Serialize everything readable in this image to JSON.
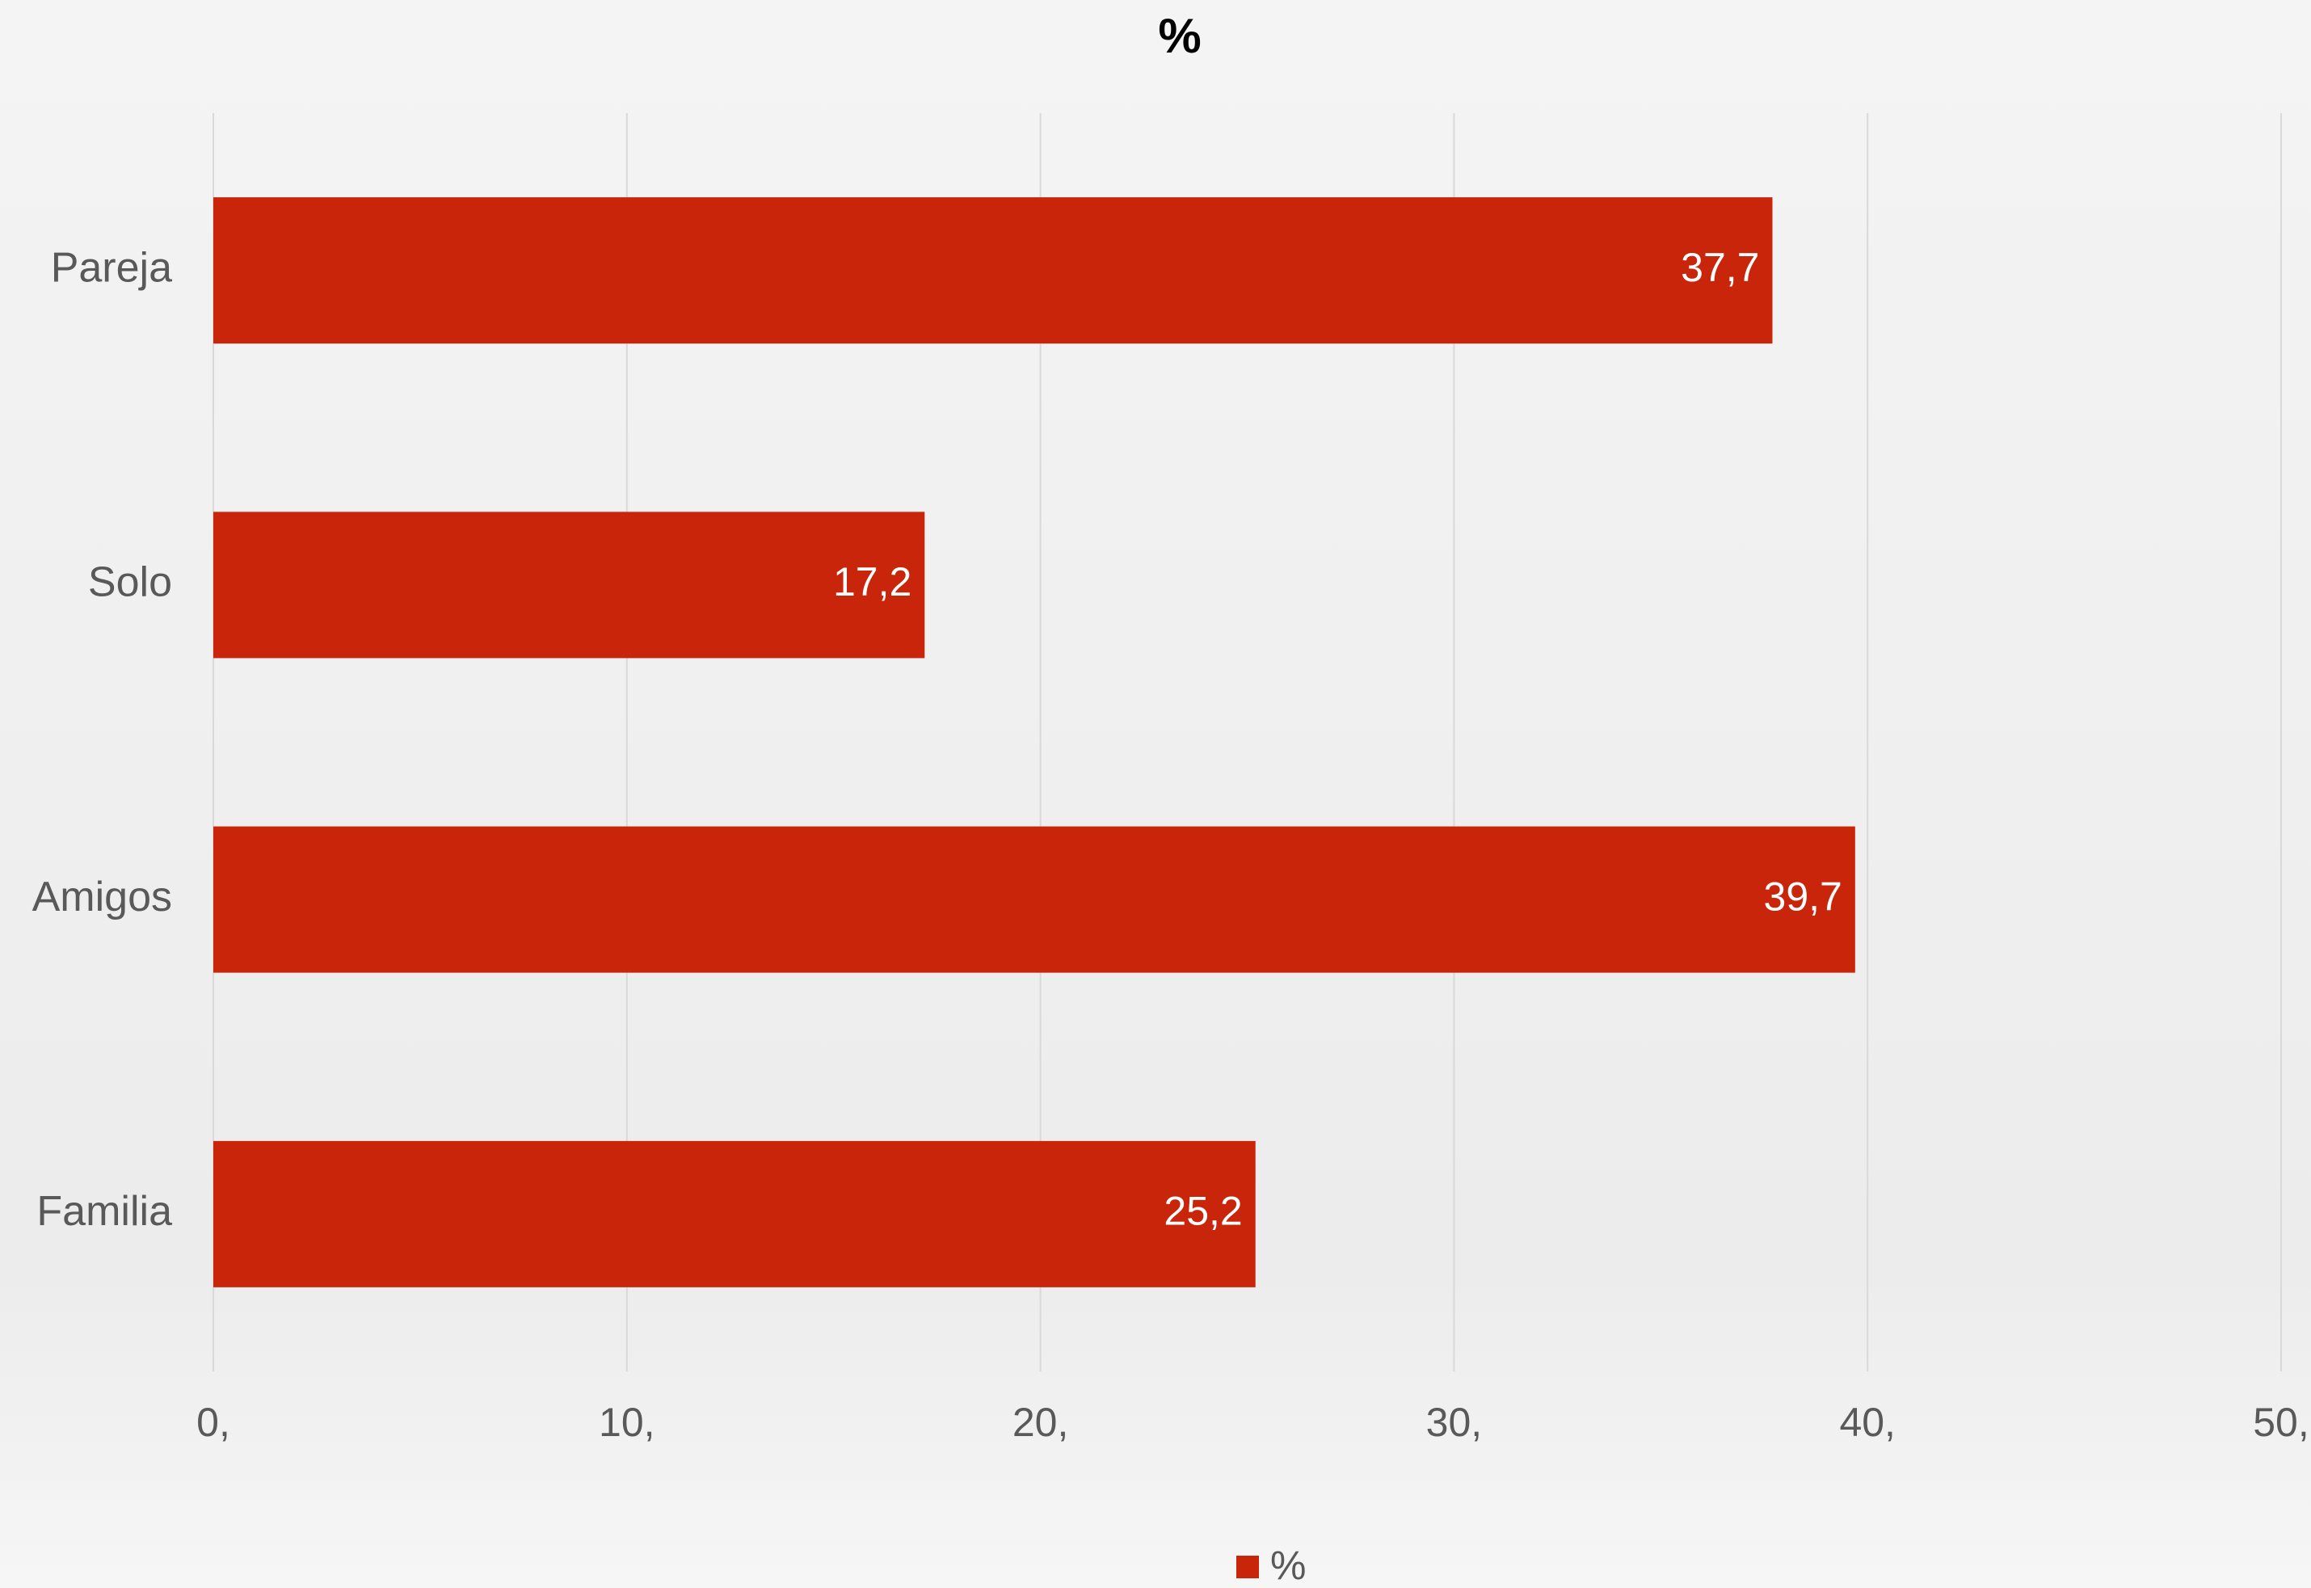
{
  "chart_data": {
    "type": "bar",
    "orientation": "horizontal",
    "title": "%",
    "categories": [
      "Pareja",
      "Solo",
      "Amigos",
      "Familia"
    ],
    "series": [
      {
        "name": "%",
        "color": "#c8250a",
        "values": [
          37.7,
          17.2,
          39.7,
          25.2
        ],
        "value_labels": [
          "37,7",
          "17,2",
          "39,7",
          "25,2"
        ]
      }
    ],
    "xlim": [
      0,
      50
    ],
    "xticks": [
      {
        "value": 0,
        "label": "0,"
      },
      {
        "value": 10,
        "label": "10,"
      },
      {
        "value": 20,
        "label": "20,"
      },
      {
        "value": 30,
        "label": "30,"
      },
      {
        "value": 40,
        "label": "40,"
      },
      {
        "value": 50,
        "label": "50,"
      }
    ],
    "grid": true,
    "legend": "bottom"
  }
}
